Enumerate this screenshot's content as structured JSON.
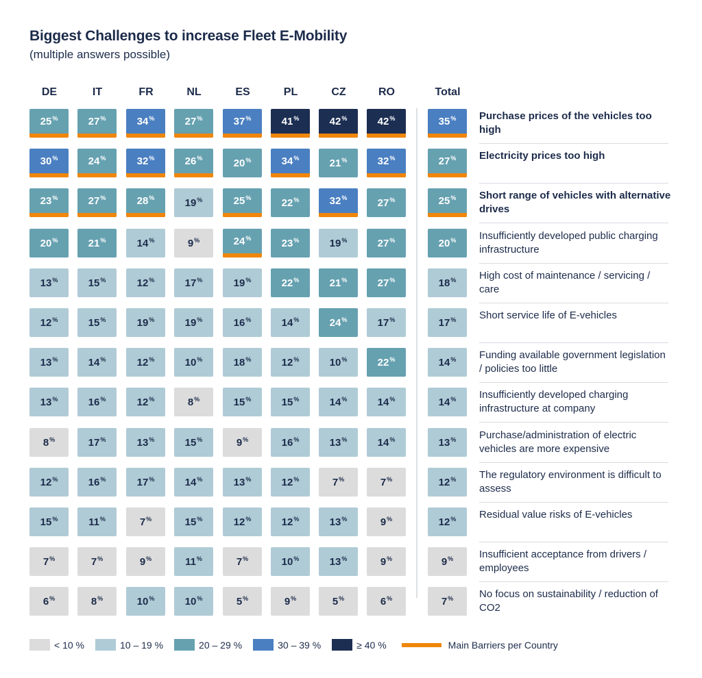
{
  "chart_data": {
    "type": "heatmap",
    "title": "Biggest Challenges to increase Fleet E-Mobility",
    "subtitle": "(multiple answers possible)",
    "columns": [
      "DE",
      "IT",
      "FR",
      "NL",
      "ES",
      "PL",
      "CZ",
      "RO"
    ],
    "total_label": "Total",
    "unit": "%",
    "rows": [
      {
        "label": "Purchase prices of the vehicles too high",
        "values": [
          25,
          27,
          34,
          27,
          37,
          41,
          42,
          42
        ],
        "total": 35,
        "main_barrier": [
          true,
          true,
          true,
          true,
          true,
          true,
          true,
          true
        ],
        "total_main": true,
        "emphasis": true
      },
      {
        "label": "Electricity prices too high",
        "values": [
          30,
          24,
          32,
          26,
          20,
          34,
          21,
          32
        ],
        "total": 27,
        "main_barrier": [
          true,
          true,
          true,
          true,
          false,
          true,
          false,
          true
        ],
        "total_main": true,
        "emphasis": true
      },
      {
        "label": "Short range of vehicles with alternative drives",
        "values": [
          23,
          27,
          28,
          19,
          25,
          22,
          32,
          27
        ],
        "total": 25,
        "main_barrier": [
          true,
          true,
          true,
          false,
          true,
          false,
          true,
          false
        ],
        "total_main": true,
        "emphasis": true
      },
      {
        "label": "Insufficiently developed public charging infrastructure",
        "values": [
          20,
          21,
          14,
          9,
          24,
          23,
          19,
          27
        ],
        "total": 20,
        "main_barrier": [
          false,
          false,
          false,
          false,
          true,
          false,
          false,
          false
        ],
        "total_main": false,
        "emphasis": false
      },
      {
        "label": "High cost of maintenance / servicing / care",
        "values": [
          13,
          15,
          12,
          17,
          19,
          22,
          21,
          27
        ],
        "total": 18,
        "main_barrier": [
          false,
          false,
          false,
          false,
          false,
          false,
          false,
          false
        ],
        "total_main": false,
        "emphasis": false
      },
      {
        "label": "Short service life of E-vehicles",
        "values": [
          12,
          15,
          19,
          19,
          16,
          14,
          24,
          17
        ],
        "total": 17,
        "main_barrier": [
          false,
          false,
          false,
          false,
          false,
          false,
          false,
          false
        ],
        "total_main": false,
        "emphasis": false
      },
      {
        "label": "Funding available government legislation / policies too little",
        "values": [
          13,
          14,
          12,
          10,
          18,
          12,
          10,
          22
        ],
        "total": 14,
        "main_barrier": [
          false,
          false,
          false,
          false,
          false,
          false,
          false,
          false
        ],
        "total_main": false,
        "emphasis": false
      },
      {
        "label": "Insufficiently developed charging infrastructure at company",
        "values": [
          13,
          16,
          12,
          8,
          15,
          15,
          14,
          14
        ],
        "total": 14,
        "main_barrier": [
          false,
          false,
          false,
          false,
          false,
          false,
          false,
          false
        ],
        "total_main": false,
        "emphasis": false
      },
      {
        "label": "Purchase/administration of electric vehicles are more expensive",
        "values": [
          8,
          17,
          13,
          15,
          9,
          16,
          13,
          14
        ],
        "total": 13,
        "main_barrier": [
          false,
          false,
          false,
          false,
          false,
          false,
          false,
          false
        ],
        "total_main": false,
        "emphasis": false
      },
      {
        "label": "The regulatory environment is difficult to assess",
        "values": [
          12,
          16,
          17,
          14,
          13,
          12,
          7,
          7
        ],
        "total": 12,
        "main_barrier": [
          false,
          false,
          false,
          false,
          false,
          false,
          false,
          false
        ],
        "total_main": false,
        "emphasis": false
      },
      {
        "label": "Residual value risks of E-vehicles",
        "values": [
          15,
          11,
          7,
          15,
          12,
          12,
          13,
          9
        ],
        "total": 12,
        "main_barrier": [
          false,
          false,
          false,
          false,
          false,
          false,
          false,
          false
        ],
        "total_main": false,
        "emphasis": false
      },
      {
        "label": "Insufficient acceptance from drivers / employees",
        "values": [
          7,
          7,
          9,
          11,
          7,
          10,
          13,
          9
        ],
        "total": 9,
        "main_barrier": [
          false,
          false,
          false,
          false,
          false,
          false,
          false,
          false
        ],
        "total_main": false,
        "emphasis": false
      },
      {
        "label": "No focus on sustainability / reduction of CO2",
        "values": [
          6,
          8,
          10,
          10,
          5,
          9,
          5,
          6
        ],
        "total": 7,
        "main_barrier": [
          false,
          false,
          false,
          false,
          false,
          false,
          false,
          false
        ],
        "total_main": false,
        "emphasis": false
      }
    ],
    "color_scale": [
      {
        "label": "< 10 %",
        "min": 0,
        "max": 9,
        "color": "#dcdcdc",
        "text_color": "#1c2b4a"
      },
      {
        "label": "10 – 19 %",
        "min": 10,
        "max": 19,
        "color": "#afcbd6",
        "text_color": "#1c2b4a"
      },
      {
        "label": "20 – 29 %",
        "min": 20,
        "max": 29,
        "color": "#66a1b0",
        "text_color": "#ffffff"
      },
      {
        "label": "30 – 39 %",
        "min": 30,
        "max": 39,
        "color": "#4a7fc1",
        "text_color": "#ffffff"
      },
      {
        "label": "≥ 40 %",
        "min": 40,
        "max": 100,
        "color": "#1c2e52",
        "text_color": "#ffffff"
      }
    ],
    "main_barrier_legend": {
      "label": "Main Barriers per Country",
      "color": "#f0860a"
    }
  }
}
